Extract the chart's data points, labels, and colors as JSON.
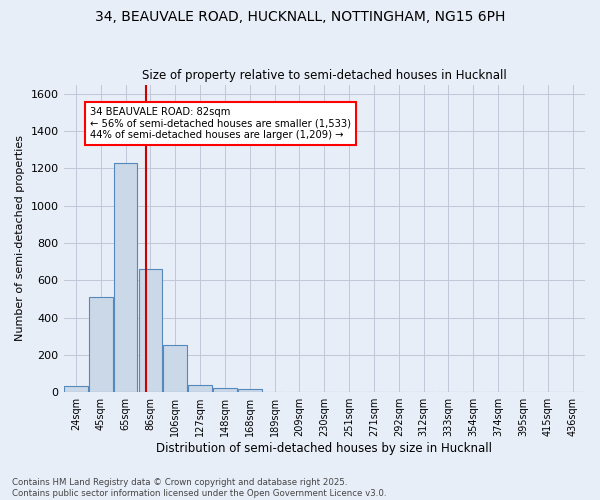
{
  "title_line1": "34, BEAUVALE ROAD, HUCKNALL, NOTTINGHAM, NG15 6PH",
  "title_line2": "Size of property relative to semi-detached houses in Hucknall",
  "xlabel": "Distribution of semi-detached houses by size in Hucknall",
  "ylabel": "Number of semi-detached properties",
  "categories": [
    "24sqm",
    "45sqm",
    "65sqm",
    "86sqm",
    "106sqm",
    "127sqm",
    "148sqm",
    "168sqm",
    "189sqm",
    "209sqm",
    "230sqm",
    "251sqm",
    "271sqm",
    "292sqm",
    "312sqm",
    "333sqm",
    "354sqm",
    "374sqm",
    "395sqm",
    "415sqm",
    "436sqm"
  ],
  "values": [
    35,
    510,
    1230,
    660,
    255,
    40,
    22,
    18,
    0,
    0,
    0,
    0,
    0,
    0,
    0,
    0,
    0,
    0,
    0,
    0,
    0
  ],
  "bar_color": "#cad8e8",
  "bar_edge_color": "#5588bb",
  "annotation_line1": "34 BEAUVALE ROAD: 82sqm",
  "annotation_line2": "← 56% of semi-detached houses are smaller (1,533)",
  "annotation_line3": "44% of semi-detached houses are larger (1,209) →",
  "vline_color": "#cc0000",
  "vline_index": 2.81,
  "ylim": [
    0,
    1650
  ],
  "yticks": [
    0,
    200,
    400,
    600,
    800,
    1000,
    1200,
    1400,
    1600
  ],
  "grid_color": "#c0c8d8",
  "background_color": "#e8eef8",
  "footer_line1": "Contains HM Land Registry data © Crown copyright and database right 2025.",
  "footer_line2": "Contains public sector information licensed under the Open Government Licence v3.0."
}
